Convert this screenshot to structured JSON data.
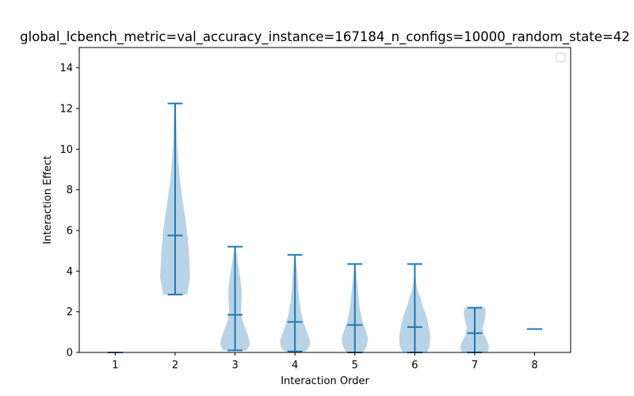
{
  "chart_data": {
    "type": "violin",
    "title": "global_lcbench_metric=val_accuracy_instance=167184_n_configs=10000_random_state=42",
    "xlabel": "Interaction Order",
    "ylabel": "Interaction Effect",
    "xlim": [
      0.4,
      8.6
    ],
    "ylim": [
      0,
      15
    ],
    "x_ticks": [
      "1",
      "2",
      "3",
      "4",
      "5",
      "6",
      "7",
      "8"
    ],
    "y_ticks": [
      "0",
      "2",
      "4",
      "6",
      "8",
      "10",
      "12",
      "14"
    ],
    "grid": false,
    "legend": {
      "placement": "top-right",
      "entries": []
    },
    "colors": {
      "body": "#a6c8e0",
      "lines": "#1f77b4"
    },
    "series": [
      {
        "x": 1,
        "min": 0.0,
        "mean": 0.0,
        "max": 0.0,
        "profile": [
          [
            0.0,
            0.0
          ]
        ]
      },
      {
        "x": 2,
        "min": 2.85,
        "mean": 5.75,
        "max": 12.25,
        "profile": [
          [
            2.85,
            0.2
          ],
          [
            3.2,
            0.22
          ],
          [
            3.7,
            0.25
          ],
          [
            4.3,
            0.24
          ],
          [
            5.0,
            0.23
          ],
          [
            5.6,
            0.21
          ],
          [
            6.2,
            0.19
          ],
          [
            6.8,
            0.16
          ],
          [
            7.6,
            0.12
          ],
          [
            8.5,
            0.08
          ],
          [
            9.5,
            0.05
          ],
          [
            10.5,
            0.03
          ],
          [
            11.5,
            0.02
          ],
          [
            12.25,
            0.01
          ]
        ]
      },
      {
        "x": 3,
        "min": 0.1,
        "mean": 1.85,
        "max": 5.2,
        "profile": [
          [
            0.1,
            0.2
          ],
          [
            0.4,
            0.25
          ],
          [
            0.8,
            0.22
          ],
          [
            1.2,
            0.17
          ],
          [
            1.6,
            0.12
          ],
          [
            2.1,
            0.1
          ],
          [
            2.6,
            0.11
          ],
          [
            3.1,
            0.11
          ],
          [
            3.6,
            0.09
          ],
          [
            4.2,
            0.06
          ],
          [
            4.8,
            0.03
          ],
          [
            5.2,
            0.0
          ]
        ]
      },
      {
        "x": 4,
        "min": 0.05,
        "mean": 1.5,
        "max": 4.8,
        "profile": [
          [
            0.05,
            0.18
          ],
          [
            0.3,
            0.24
          ],
          [
            0.6,
            0.25
          ],
          [
            1.0,
            0.2
          ],
          [
            1.5,
            0.14
          ],
          [
            2.0,
            0.1
          ],
          [
            2.6,
            0.07
          ],
          [
            3.2,
            0.05
          ],
          [
            3.8,
            0.04
          ],
          [
            4.4,
            0.02
          ],
          [
            4.8,
            0.0
          ]
        ]
      },
      {
        "x": 5,
        "min": 0.0,
        "mean": 1.35,
        "max": 4.35,
        "profile": [
          [
            0.0,
            0.14
          ],
          [
            0.3,
            0.2
          ],
          [
            0.7,
            0.22
          ],
          [
            1.1,
            0.18
          ],
          [
            1.6,
            0.12
          ],
          [
            2.2,
            0.08
          ],
          [
            2.8,
            0.06
          ],
          [
            3.4,
            0.04
          ],
          [
            4.0,
            0.02
          ],
          [
            4.35,
            0.0
          ]
        ]
      },
      {
        "x": 6,
        "min": 0.0,
        "mean": 1.25,
        "max": 4.35,
        "profile": [
          [
            0.0,
            0.2
          ],
          [
            0.3,
            0.25
          ],
          [
            0.7,
            0.26
          ],
          [
            1.2,
            0.24
          ],
          [
            1.7,
            0.2
          ],
          [
            2.2,
            0.14
          ],
          [
            2.7,
            0.09
          ],
          [
            3.1,
            0.04
          ],
          [
            3.5,
            0.02
          ],
          [
            4.0,
            0.005
          ],
          [
            4.35,
            0.0
          ]
        ]
      },
      {
        "x": 7,
        "min": 0.0,
        "mean": 0.95,
        "max": 2.2,
        "profile": [
          [
            0.0,
            0.22
          ],
          [
            0.3,
            0.24
          ],
          [
            0.6,
            0.2
          ],
          [
            0.9,
            0.15
          ],
          [
            1.2,
            0.13
          ],
          [
            1.5,
            0.16
          ],
          [
            1.8,
            0.18
          ],
          [
            2.0,
            0.18
          ],
          [
            2.2,
            0.17
          ]
        ]
      },
      {
        "x": 8,
        "min": 1.15,
        "mean": 1.15,
        "max": 1.15,
        "profile": [
          [
            1.15,
            0.0
          ]
        ]
      }
    ]
  }
}
